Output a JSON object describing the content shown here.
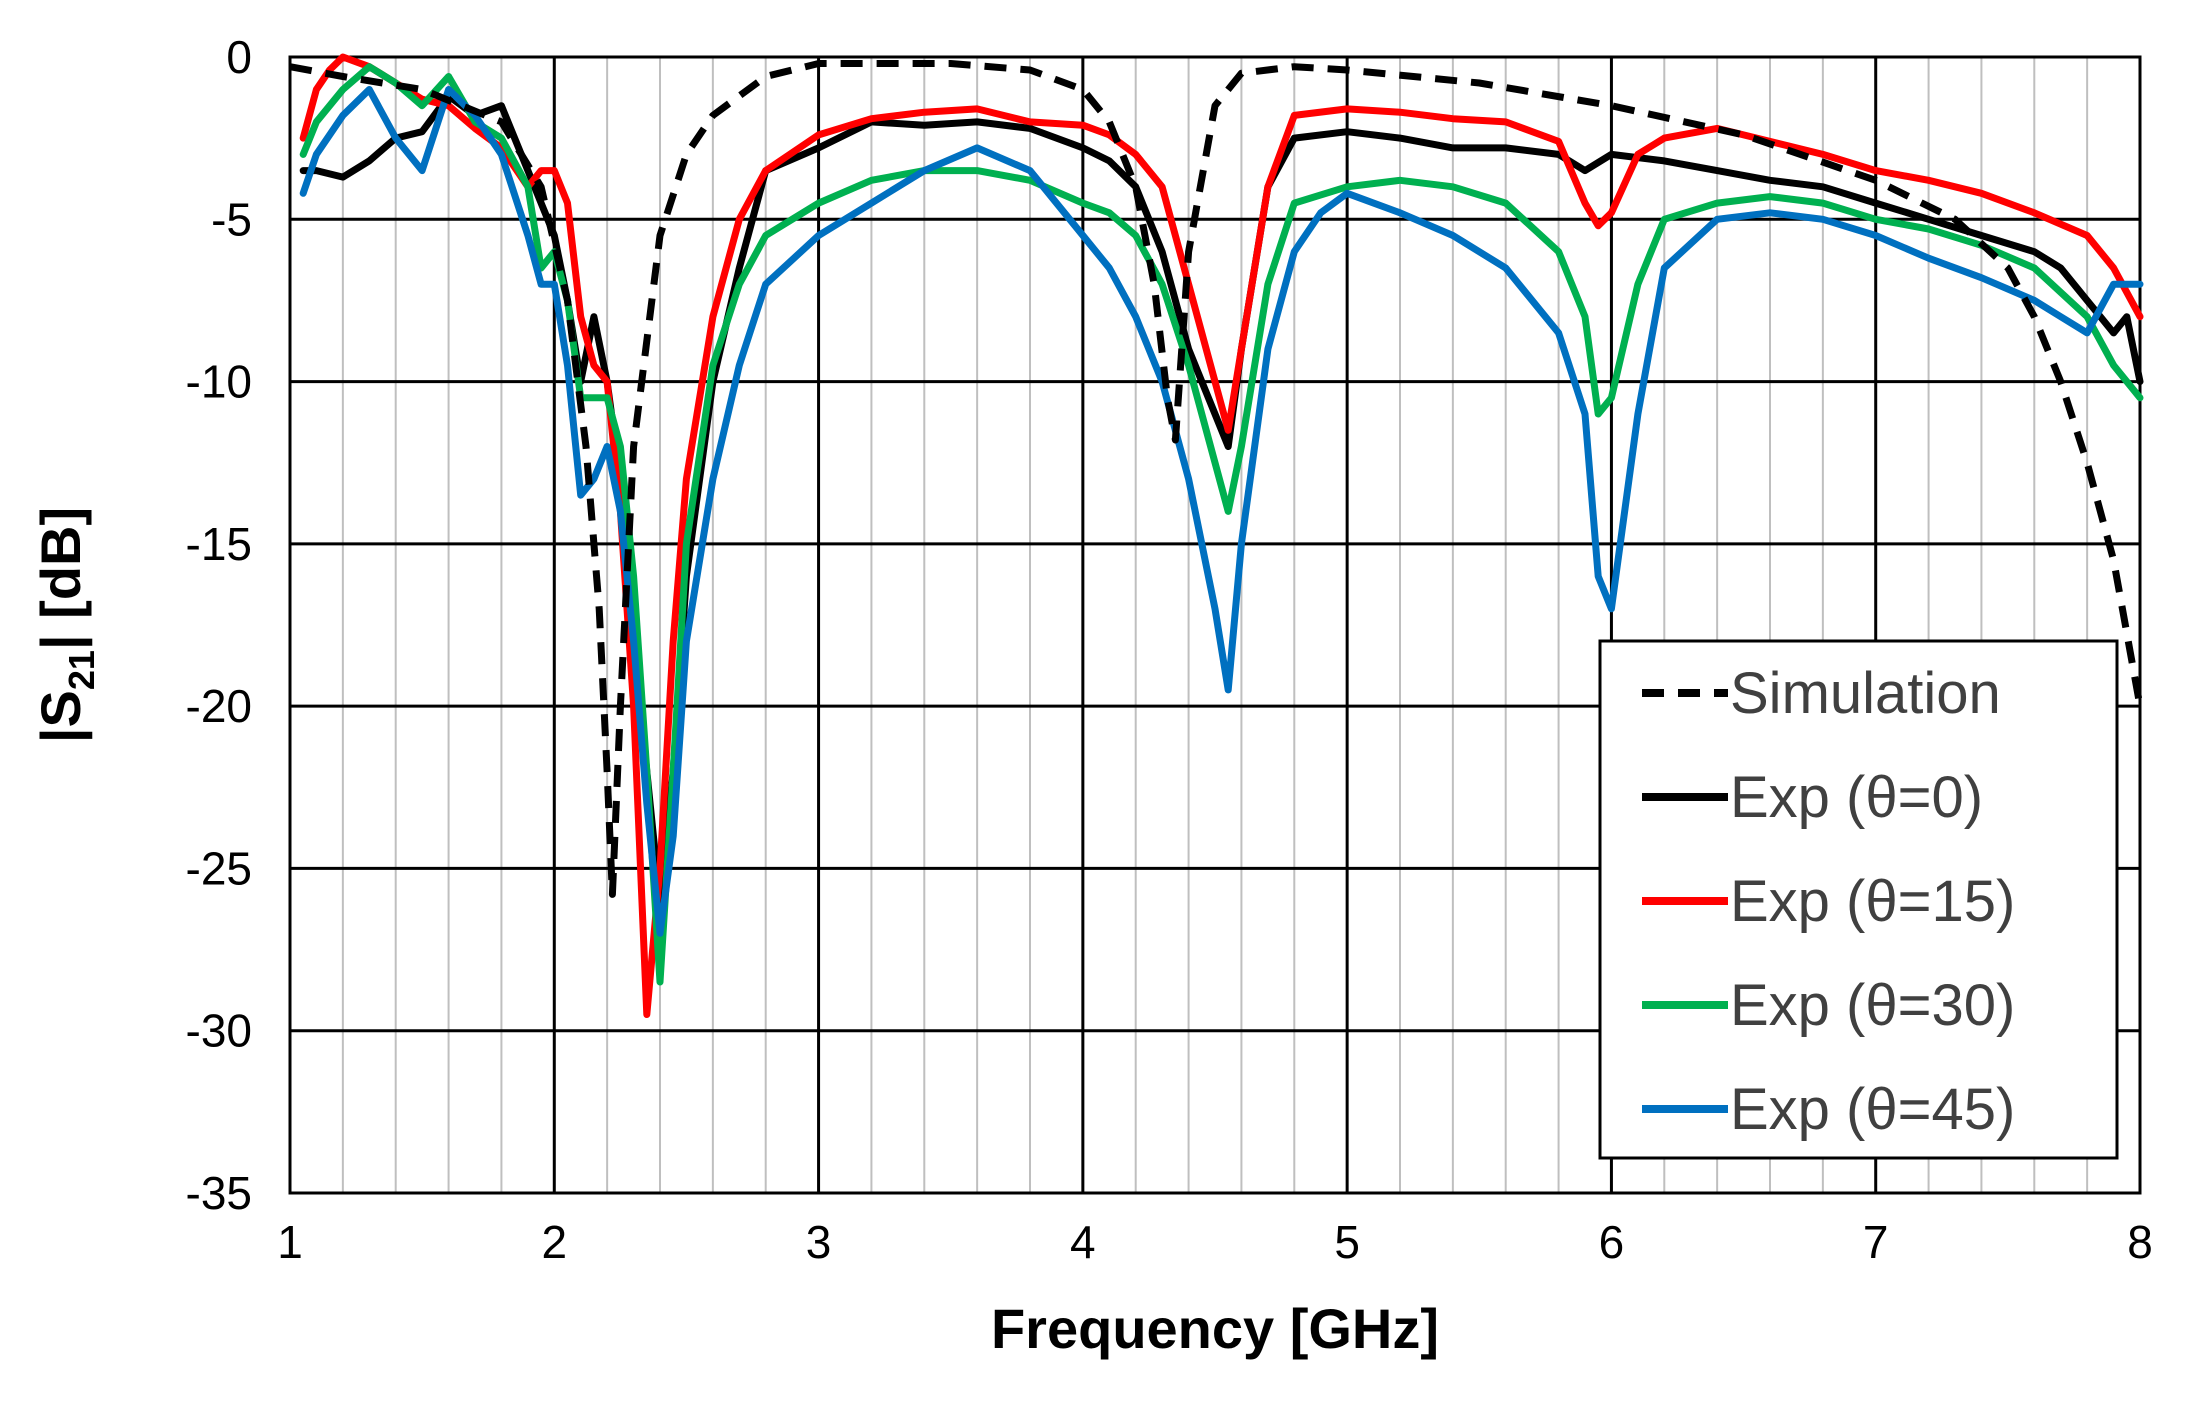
{
  "chart_data": {
    "type": "line",
    "title": "",
    "xlabel": "Frequency [GHz]",
    "ylabel_main": "|S",
    "ylabel_sub": "21",
    "ylabel_tail": "| [dB]",
    "xlim": [
      1,
      8
    ],
    "ylim": [
      -35,
      0
    ],
    "x_ticks": [
      "1",
      "2",
      "3",
      "4",
      "5",
      "6",
      "7",
      "8"
    ],
    "y_ticks": [
      "0",
      "-5",
      "-10",
      "-15",
      "-20",
      "-25",
      "-30",
      "-35"
    ],
    "grid": {
      "major": true,
      "minor_x": true,
      "minor_x_step": 0.2
    },
    "legend_position": "bottom-right",
    "series": [
      {
        "name": "Simulation",
        "color": "#000000",
        "dash": "dashed",
        "x": [
          1.0,
          1.2,
          1.5,
          1.8,
          1.95,
          2.05,
          2.12,
          2.17,
          2.2,
          2.22,
          2.25,
          2.3,
          2.4,
          2.5,
          2.6,
          2.8,
          3.0,
          3.5,
          3.8,
          4.0,
          4.1,
          4.2,
          4.27,
          4.32,
          4.35,
          4.4,
          4.5,
          4.6,
          4.8,
          5.0,
          5.5,
          6.0,
          6.5,
          7.0,
          7.3,
          7.5,
          7.6,
          7.7,
          7.8,
          7.9,
          8.0
        ],
        "y": [
          -0.3,
          -0.6,
          -1.0,
          -2.0,
          -4.0,
          -7.5,
          -12.0,
          -17.0,
          -22.0,
          -25.8,
          -20.0,
          -12.0,
          -5.5,
          -3.0,
          -1.8,
          -0.6,
          -0.2,
          -0.2,
          -0.4,
          -1.0,
          -2.0,
          -4.0,
          -7.0,
          -10.5,
          -11.8,
          -6.0,
          -1.5,
          -0.5,
          -0.3,
          -0.4,
          -0.8,
          -1.5,
          -2.4,
          -3.8,
          -5.0,
          -6.5,
          -8.0,
          -10.0,
          -12.5,
          -15.5,
          -20.0
        ]
      },
      {
        "name": "Exp (θ=0)",
        "color": "#000000",
        "dash": "solid",
        "x": [
          1.05,
          1.1,
          1.2,
          1.3,
          1.4,
          1.5,
          1.6,
          1.7,
          1.8,
          1.85,
          1.9,
          2.0,
          2.05,
          2.1,
          2.15,
          2.2,
          2.25,
          2.3,
          2.35,
          2.4,
          2.45,
          2.5,
          2.6,
          2.7,
          2.8,
          3.0,
          3.2,
          3.4,
          3.6,
          3.8,
          4.0,
          4.1,
          4.2,
          4.3,
          4.4,
          4.5,
          4.55,
          4.6,
          4.7,
          4.8,
          5.0,
          5.2,
          5.4,
          5.6,
          5.8,
          5.9,
          6.0,
          6.2,
          6.4,
          6.6,
          6.8,
          7.0,
          7.2,
          7.4,
          7.6,
          7.7,
          7.8,
          7.9,
          7.95,
          8.0
        ],
        "y": [
          -3.5,
          -3.5,
          -3.7,
          -3.2,
          -2.5,
          -2.3,
          -1.2,
          -1.8,
          -1.5,
          -2.5,
          -3.5,
          -5.5,
          -7.5,
          -10.0,
          -8.0,
          -10.0,
          -13.0,
          -18.0,
          -22.0,
          -26.0,
          -22.0,
          -16.0,
          -10.0,
          -6.5,
          -3.5,
          -2.8,
          -2.0,
          -2.1,
          -2.0,
          -2.2,
          -2.8,
          -3.2,
          -4.0,
          -6.0,
          -9.0,
          -11.0,
          -12.0,
          -9.0,
          -4.0,
          -2.5,
          -2.3,
          -2.5,
          -2.8,
          -2.8,
          -3.0,
          -3.5,
          -3.0,
          -3.2,
          -3.5,
          -3.8,
          -4.0,
          -4.5,
          -5.0,
          -5.5,
          -6.0,
          -6.5,
          -7.5,
          -8.5,
          -8.0,
          -10.0
        ]
      },
      {
        "name": "Exp (θ=15)",
        "color": "#ff0000",
        "dash": "solid",
        "x": [
          1.05,
          1.1,
          1.15,
          1.2,
          1.3,
          1.4,
          1.5,
          1.6,
          1.7,
          1.8,
          1.9,
          1.95,
          2.0,
          2.05,
          2.1,
          2.15,
          2.2,
          2.25,
          2.3,
          2.35,
          2.4,
          2.45,
          2.5,
          2.6,
          2.7,
          2.8,
          3.0,
          3.2,
          3.4,
          3.6,
          3.8,
          4.0,
          4.1,
          4.2,
          4.3,
          4.4,
          4.5,
          4.55,
          4.6,
          4.7,
          4.8,
          5.0,
          5.2,
          5.4,
          5.6,
          5.8,
          5.9,
          5.95,
          6.0,
          6.1,
          6.2,
          6.4,
          6.6,
          6.8,
          7.0,
          7.2,
          7.4,
          7.6,
          7.8,
          7.9,
          8.0
        ],
        "y": [
          -2.5,
          -1.0,
          -0.4,
          0.0,
          -0.3,
          -0.8,
          -1.3,
          -1.5,
          -2.2,
          -2.8,
          -4.0,
          -3.5,
          -3.5,
          -4.5,
          -8.0,
          -9.5,
          -10.0,
          -14.0,
          -20.0,
          -29.5,
          -25.0,
          -18.0,
          -13.0,
          -8.0,
          -5.0,
          -3.5,
          -2.4,
          -1.9,
          -1.7,
          -1.6,
          -2.0,
          -2.1,
          -2.4,
          -3.0,
          -4.0,
          -7.0,
          -10.0,
          -11.5,
          -9.0,
          -4.0,
          -1.8,
          -1.6,
          -1.7,
          -1.9,
          -2.0,
          -2.6,
          -4.5,
          -5.2,
          -4.8,
          -3.0,
          -2.5,
          -2.2,
          -2.6,
          -3.0,
          -3.5,
          -3.8,
          -4.2,
          -4.8,
          -5.5,
          -6.5,
          -8.0
        ]
      },
      {
        "name": "Exp (θ=30)",
        "color": "#00b050",
        "dash": "solid",
        "x": [
          1.05,
          1.1,
          1.2,
          1.3,
          1.4,
          1.5,
          1.6,
          1.7,
          1.8,
          1.9,
          1.95,
          2.0,
          2.05,
          2.1,
          2.15,
          2.2,
          2.25,
          2.3,
          2.35,
          2.4,
          2.45,
          2.5,
          2.6,
          2.7,
          2.8,
          3.0,
          3.2,
          3.4,
          3.6,
          3.8,
          4.0,
          4.1,
          4.2,
          4.3,
          4.4,
          4.5,
          4.55,
          4.6,
          4.7,
          4.8,
          5.0,
          5.2,
          5.4,
          5.6,
          5.8,
          5.9,
          5.95,
          6.0,
          6.1,
          6.2,
          6.4,
          6.6,
          6.8,
          7.0,
          7.2,
          7.4,
          7.6,
          7.8,
          7.9,
          8.0
        ],
        "y": [
          -3.0,
          -2.0,
          -1.0,
          -0.3,
          -0.8,
          -1.5,
          -0.6,
          -2.0,
          -2.5,
          -4.0,
          -6.5,
          -6.0,
          -7.5,
          -10.5,
          -10.5,
          -10.5,
          -12.0,
          -16.0,
          -22.0,
          -28.5,
          -22.0,
          -15.0,
          -9.5,
          -7.0,
          -5.5,
          -4.5,
          -3.8,
          -3.5,
          -3.5,
          -3.8,
          -4.5,
          -4.8,
          -5.5,
          -7.0,
          -9.5,
          -12.5,
          -14.0,
          -12.0,
          -7.0,
          -4.5,
          -4.0,
          -3.8,
          -4.0,
          -4.5,
          -6.0,
          -8.0,
          -11.0,
          -10.5,
          -7.0,
          -5.0,
          -4.5,
          -4.3,
          -4.5,
          -5.0,
          -5.3,
          -5.8,
          -6.5,
          -8.0,
          -9.5,
          -10.5
        ]
      },
      {
        "name": "Exp (θ=45)",
        "color": "#0070c0",
        "dash": "solid",
        "x": [
          1.05,
          1.1,
          1.2,
          1.3,
          1.4,
          1.5,
          1.6,
          1.7,
          1.8,
          1.9,
          1.95,
          2.0,
          2.05,
          2.1,
          2.15,
          2.2,
          2.25,
          2.3,
          2.35,
          2.4,
          2.45,
          2.5,
          2.6,
          2.7,
          2.8,
          3.0,
          3.2,
          3.4,
          3.6,
          3.8,
          4.0,
          4.1,
          4.2,
          4.3,
          4.4,
          4.5,
          4.55,
          4.6,
          4.7,
          4.8,
          4.9,
          5.0,
          5.2,
          5.4,
          5.6,
          5.8,
          5.9,
          5.95,
          6.0,
          6.1,
          6.2,
          6.4,
          6.6,
          6.8,
          7.0,
          7.2,
          7.4,
          7.6,
          7.7,
          7.8,
          7.9,
          8.0
        ],
        "y": [
          -4.2,
          -3.0,
          -1.8,
          -1.0,
          -2.5,
          -3.5,
          -1.0,
          -1.8,
          -3.0,
          -5.5,
          -7.0,
          -7.0,
          -9.5,
          -13.5,
          -13.0,
          -12.0,
          -14.0,
          -18.0,
          -23.0,
          -27.0,
          -24.0,
          -18.0,
          -13.0,
          -9.5,
          -7.0,
          -5.5,
          -4.5,
          -3.5,
          -2.8,
          -3.5,
          -5.5,
          -6.5,
          -8.0,
          -10.0,
          -13.0,
          -17.0,
          -19.5,
          -15.0,
          -9.0,
          -6.0,
          -4.8,
          -4.2,
          -4.8,
          -5.5,
          -6.5,
          -8.5,
          -11.0,
          -16.0,
          -17.0,
          -11.0,
          -6.5,
          -5.0,
          -4.8,
          -5.0,
          -5.5,
          -6.2,
          -6.8,
          -7.5,
          -8.0,
          -8.5,
          -7.0,
          -7.0
        ]
      }
    ]
  }
}
